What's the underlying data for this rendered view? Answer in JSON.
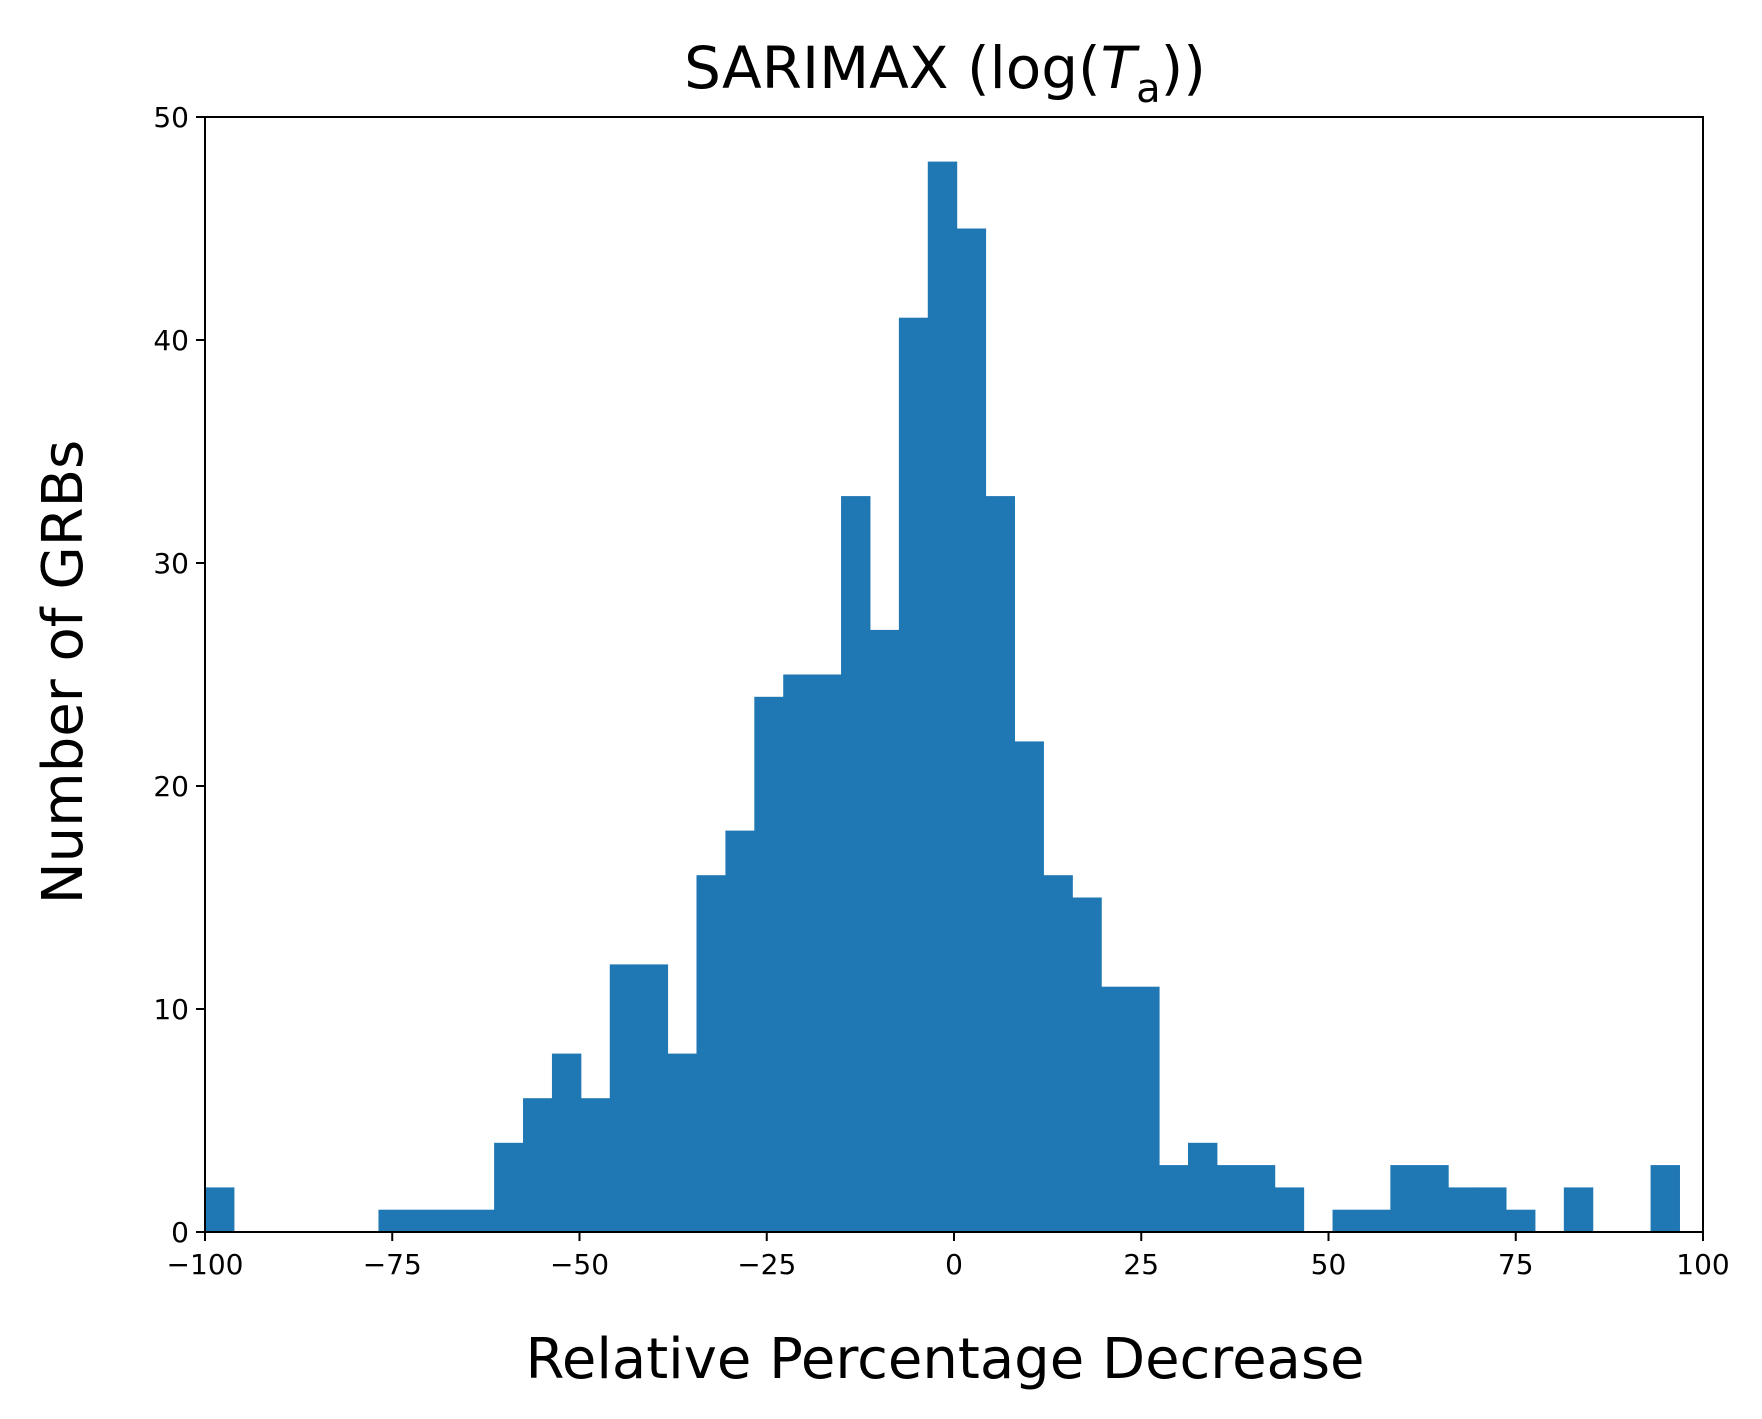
{
  "chart_data": {
    "type": "bar",
    "title": "SARIMAX (log(",
    "title_var": "T",
    "title_sub": "a",
    "title_end": "))",
    "xlabel": "Relative Percentage Decrease",
    "ylabel": "Number of GRBs",
    "xlim": [
      -100,
      100
    ],
    "ylim": [
      0,
      50
    ],
    "xticks": [
      -100,
      -75,
      -50,
      -25,
      0,
      25,
      50,
      75,
      100
    ],
    "xtick_labels": [
      "−100",
      "−75",
      "−50",
      "−25",
      "0",
      "25",
      "50",
      "75",
      "100"
    ],
    "yticks": [
      0,
      10,
      20,
      30,
      40,
      50
    ],
    "ytick_labels": [
      "0",
      "10",
      "20",
      "30",
      "40",
      "50"
    ],
    "bar_color": "#1f77b4",
    "bin_start": -100,
    "bin_width": 3.86,
    "values": [
      2,
      0,
      0,
      0,
      0,
      0,
      1,
      1,
      1,
      1,
      4,
      6,
      8,
      6,
      12,
      12,
      8,
      16,
      18,
      24,
      25,
      25,
      33,
      27,
      41,
      48,
      45,
      33,
      22,
      16,
      15,
      11,
      11,
      3,
      4,
      3,
      3,
      2,
      0,
      1,
      1,
      3,
      3,
      2,
      2,
      1,
      0,
      2,
      0,
      0,
      3
    ],
    "grid": false,
    "legend": "none"
  }
}
